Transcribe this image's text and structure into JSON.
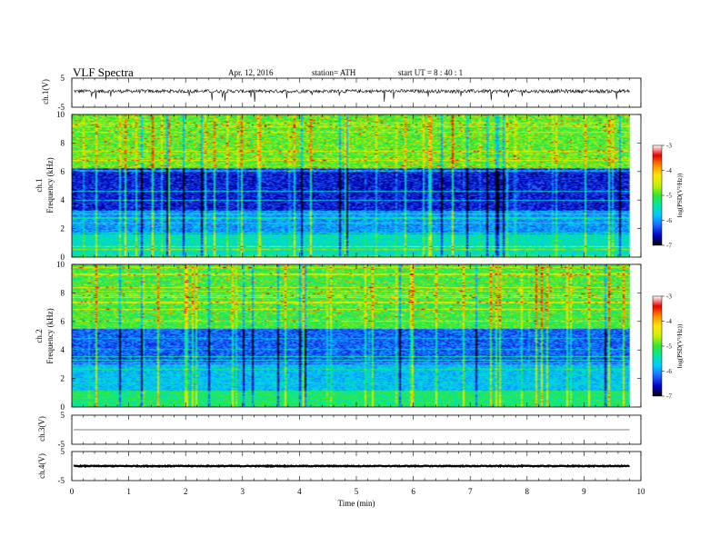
{
  "header": {
    "title": "VLF  Spectra",
    "date": "Apr. 12, 2016",
    "station": "station= ATH",
    "start": "start  UT  =   8  : 40 : 1"
  },
  "colors": {
    "spectrogram_scale": [
      "#000000",
      "#0000c8",
      "#1e64ff",
      "#00c8ff",
      "#00e6aa",
      "#32e632",
      "#c8f000",
      "#ffe600",
      "#ff8c00",
      "#e60000",
      "#ffffff"
    ],
    "trace": "#000000",
    "axis": "#000000"
  },
  "chart_data": [
    {
      "panel": "ch1-waveform",
      "type": "line",
      "ylabel": "ch.1(V)",
      "ylim": [
        -5,
        5
      ],
      "y_ticks": [
        "5",
        "-5"
      ],
      "xlim": [
        0,
        10
      ],
      "baseline_v": 0.5,
      "noise_amplitude_v": 0.6,
      "spike_amplitude_v": 2.5,
      "data_extent_min": 9.8
    },
    {
      "panel": "ch1-spectrogram",
      "type": "heatmap",
      "ylabel_channel": "ch.1",
      "ylabel": "Frequency  (kHz)",
      "ylim": [
        0,
        10
      ],
      "y_ticks": [
        "0",
        "2",
        "4",
        "6",
        "8",
        "10"
      ],
      "xlim": [
        0,
        10
      ],
      "data_extent_min": 9.8,
      "colorbar": {
        "label": "log(PSD(V²/Hz))",
        "range": [
          -7,
          -3
        ],
        "ticks": [
          "-3",
          "-4",
          "-5",
          "-6",
          "-7"
        ]
      }
    },
    {
      "panel": "ch2-spectrogram",
      "type": "heatmap",
      "ylabel_channel": "ch.2",
      "ylabel": "Frequency  (kHz)",
      "ylim": [
        0,
        10
      ],
      "y_ticks": [
        "0",
        "2",
        "4",
        "6",
        "8",
        "10"
      ],
      "xlim": [
        0,
        10
      ],
      "data_extent_min": 9.8,
      "colorbar": {
        "label": "log(PSD(V²/Hz))",
        "range": [
          -7,
          -3
        ],
        "ticks": [
          "-3",
          "-4",
          "-5",
          "-6",
          "-7"
        ]
      }
    },
    {
      "panel": "ch3-waveform",
      "type": "line",
      "ylabel": "ch.3(V)",
      "ylim": [
        -5,
        5
      ],
      "y_ticks": [
        "5",
        "-5"
      ],
      "xlim": [
        0,
        10
      ],
      "baseline_v": 0,
      "noise_amplitude_v": 0,
      "data_extent_min": 9.8
    },
    {
      "panel": "ch4-waveform",
      "type": "line",
      "ylabel": "ch.4(V)",
      "ylim": [
        -5,
        5
      ],
      "y_ticks": [
        "5",
        "-5"
      ],
      "xlim": [
        0,
        10
      ],
      "baseline_v": 0,
      "noise_amplitude_v": 0.15,
      "data_extent_min": 9.8
    }
  ],
  "x_axis": {
    "label": "Time  (min)",
    "range": [
      0,
      10
    ],
    "ticks": [
      "0",
      "1",
      "2",
      "3",
      "4",
      "5",
      "6",
      "7",
      "8",
      "9",
      "10"
    ]
  }
}
